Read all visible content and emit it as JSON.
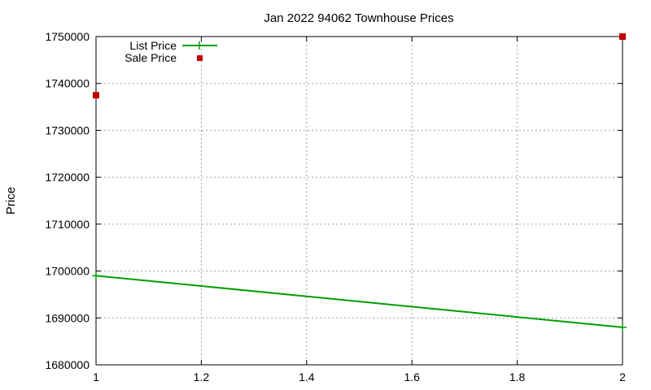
{
  "chart_data": {
    "type": "line",
    "title": "Jan 2022 94062 Townhouse Prices",
    "xlabel": "",
    "ylabel": "Price",
    "xlim": [
      1,
      2
    ],
    "ylim": [
      1680000,
      1750000
    ],
    "x_ticks": [
      1,
      1.2,
      1.4,
      1.6,
      1.8,
      2
    ],
    "x_tick_labels": [
      "1",
      "1.2",
      "1.4",
      "1.6",
      "1.8",
      "2"
    ],
    "y_ticks": [
      1680000,
      1690000,
      1700000,
      1710000,
      1720000,
      1730000,
      1740000,
      1750000
    ],
    "y_tick_labels": [
      "1680000",
      "1690000",
      "1700000",
      "1710000",
      "1720000",
      "1730000",
      "1740000",
      "1750000"
    ],
    "grid": true,
    "legend_position": "top-left",
    "series": [
      {
        "name": "List Price",
        "style": "line-with-plus-markers",
        "color": "#009e00",
        "points": [
          {
            "x": 1,
            "y": 1699000
          },
          {
            "x": 2,
            "y": 1688000
          }
        ]
      },
      {
        "name": "Sale Price",
        "style": "square-markers",
        "color": "#c00000",
        "points": [
          {
            "x": 1,
            "y": 1737500
          },
          {
            "x": 2,
            "y": 1750000
          }
        ]
      }
    ]
  }
}
